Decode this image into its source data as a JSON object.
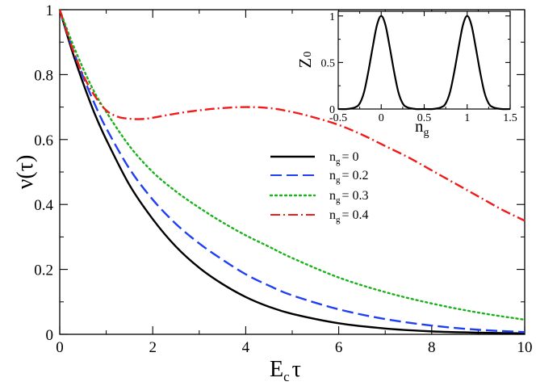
{
  "chart_data": [
    {
      "type": "line",
      "xlabel": "E_c τ",
      "xlabel_main": "E",
      "xlabel_sub": "c",
      "xlabel_tail": "τ",
      "ylabel": "ν(τ)",
      "xlim": [
        0,
        10
      ],
      "ylim": [
        0,
        1
      ],
      "xticks": [
        0,
        2,
        4,
        6,
        8,
        10
      ],
      "xtick_labels": [
        "0",
        "2",
        "4",
        "6",
        "8",
        "10"
      ],
      "yticks": [
        0,
        0.2,
        0.4,
        0.6,
        0.8,
        1
      ],
      "ytick_labels": [
        "0",
        "0.2",
        "0.4",
        "0.6",
        "0.8",
        "1"
      ],
      "legend": "center-right",
      "grid": false,
      "series": [
        {
          "name": "n_g = 0",
          "label_main": "n",
          "label_sub": "g",
          "label_tail": "= 0",
          "color": "#000000",
          "style": "solid",
          "x": [
            0,
            0.25,
            0.5,
            0.75,
            1,
            1.5,
            2,
            2.5,
            3,
            3.5,
            4,
            4.5,
            5,
            6,
            7,
            8,
            9,
            10
          ],
          "y": [
            1.0,
            0.88,
            0.775,
            0.68,
            0.6,
            0.46,
            0.355,
            0.27,
            0.205,
            0.155,
            0.115,
            0.085,
            0.063,
            0.034,
            0.018,
            0.009,
            0.005,
            0.003
          ]
        },
        {
          "name": "n_g = 0.2",
          "label_main": "n",
          "label_sub": "g",
          "label_tail": "= 0.2",
          "color": "#1f3ff0",
          "style": "dashed",
          "x": [
            0,
            0.25,
            0.5,
            0.75,
            1,
            1.5,
            2,
            2.5,
            3,
            3.5,
            4,
            4.5,
            5,
            6,
            7,
            8,
            9,
            10
          ],
          "y": [
            1.0,
            0.89,
            0.795,
            0.71,
            0.635,
            0.51,
            0.415,
            0.34,
            0.28,
            0.23,
            0.185,
            0.15,
            0.12,
            0.077,
            0.047,
            0.027,
            0.014,
            0.007
          ]
        },
        {
          "name": "n_g = 0.3",
          "label_main": "n",
          "label_sub": "g",
          "label_tail": "= 0.3",
          "color": "#1ab21a",
          "style": "dotted",
          "x": [
            0,
            0.25,
            0.5,
            0.75,
            1,
            1.5,
            2,
            2.5,
            3,
            3.5,
            4,
            4.5,
            5,
            6,
            7,
            8,
            9,
            10
          ],
          "y": [
            1.0,
            0.905,
            0.82,
            0.745,
            0.685,
            0.58,
            0.5,
            0.44,
            0.39,
            0.345,
            0.305,
            0.27,
            0.235,
            0.175,
            0.13,
            0.095,
            0.067,
            0.045
          ]
        },
        {
          "name": "n_g = 0.4",
          "label_main": "n",
          "label_sub": "g",
          "label_tail": "= 0.4",
          "color": "#f01a1a",
          "style": "dashdot",
          "x": [
            0,
            0.25,
            0.5,
            0.75,
            1,
            1.25,
            1.5,
            1.75,
            2,
            2.5,
            3,
            3.5,
            4,
            4.5,
            5,
            5.5,
            6,
            6.5,
            7,
            7.5,
            8,
            8.5,
            9,
            9.5,
            10
          ],
          "y": [
            1.0,
            0.89,
            0.8,
            0.735,
            0.69,
            0.67,
            0.664,
            0.663,
            0.667,
            0.68,
            0.69,
            0.697,
            0.7,
            0.697,
            0.685,
            0.667,
            0.645,
            0.615,
            0.58,
            0.545,
            0.505,
            0.465,
            0.425,
            0.385,
            0.35
          ]
        }
      ]
    },
    {
      "type": "line",
      "role": "inset",
      "xlabel": "n_g",
      "xlabel_main": "n",
      "xlabel_sub": "g",
      "ylabel": "Z_0",
      "ylabel_main": "Z",
      "ylabel_sub": "0",
      "xlim": [
        -0.5,
        1.5
      ],
      "ylim": [
        0,
        1.05
      ],
      "xticks": [
        -0.5,
        0,
        0.5,
        1,
        1.5
      ],
      "xtick_labels": [
        "-0.5",
        "0",
        "0.5",
        "1",
        "1.5"
      ],
      "yticks": [
        0,
        0.5,
        1
      ],
      "ytick_labels": [
        "0",
        "0.5",
        "1"
      ],
      "series": [
        {
          "name": "Z_0",
          "color": "#000000",
          "style": "solid",
          "x": [
            -0.5,
            -0.4,
            -0.3,
            -0.25,
            -0.2,
            -0.15,
            -0.1,
            -0.05,
            0,
            0.05,
            0.1,
            0.15,
            0.2,
            0.25,
            0.3,
            0.4,
            0.5,
            0.6,
            0.7,
            0.75,
            0.8,
            0.85,
            0.9,
            0.95,
            1.0,
            1.05,
            1.1,
            1.15,
            1.2,
            1.25,
            1.3,
            1.4,
            1.5
          ],
          "y": [
            0.0,
            0.0,
            0.02,
            0.06,
            0.18,
            0.4,
            0.66,
            0.9,
            1.0,
            0.9,
            0.66,
            0.4,
            0.18,
            0.06,
            0.02,
            0.0,
            0.0,
            0.0,
            0.02,
            0.06,
            0.18,
            0.4,
            0.66,
            0.9,
            1.0,
            0.9,
            0.66,
            0.4,
            0.18,
            0.06,
            0.02,
            0.0,
            0.0
          ]
        }
      ]
    }
  ]
}
